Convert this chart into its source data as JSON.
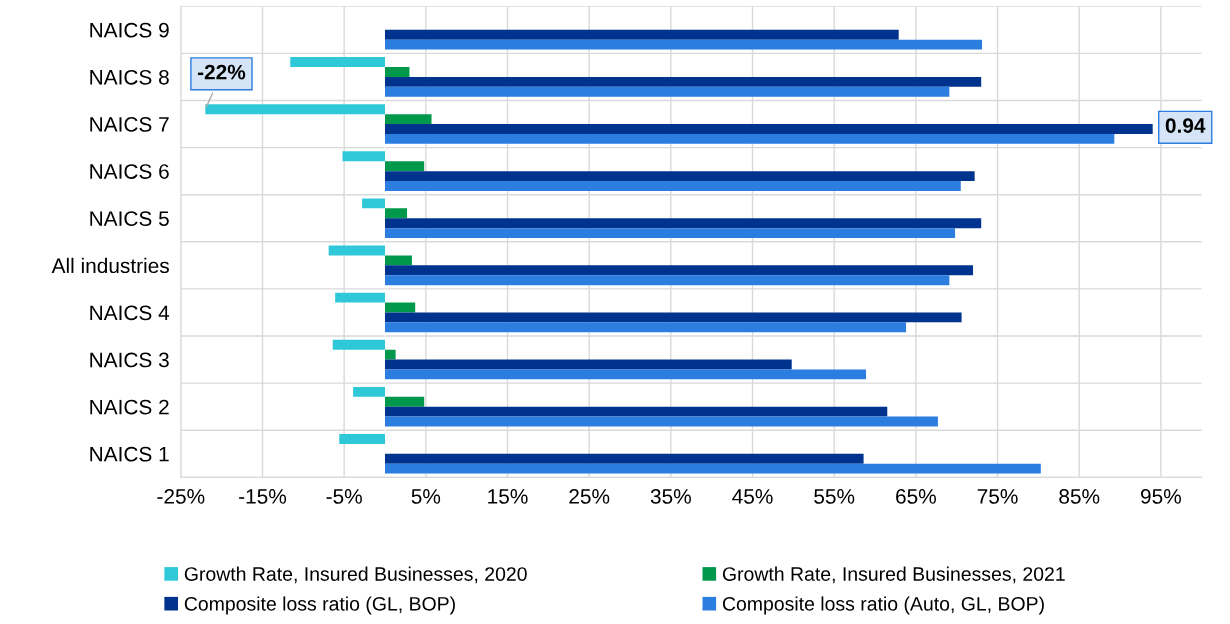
{
  "chart_data": {
    "type": "bar",
    "orientation": "horizontal",
    "categories": [
      "NAICS 9",
      "NAICS 8",
      "NAICS 7",
      "NAICS 6",
      "NAICS 5",
      "All industries",
      "NAICS 4",
      "NAICS 3",
      "NAICS 2",
      "NAICS 1"
    ],
    "series": [
      {
        "name": "Growth Rate, Insured Businesses, 2020",
        "color": "#2ec8d8",
        "values": [
          null,
          -11.6,
          -22,
          -5.2,
          -2.8,
          -6.9,
          -6.1,
          -6.4,
          -3.9,
          -5.6
        ],
        "value_labels": [
          null,
          null,
          "-22%",
          null,
          null,
          null,
          null,
          null,
          null,
          null
        ]
      },
      {
        "name": "Growth Rate, Insured Businesses, 2021",
        "color": "#00994c",
        "values": [
          null,
          3.0,
          5.7,
          4.8,
          2.7,
          3.3,
          3.7,
          1.3,
          4.8,
          null
        ]
      },
      {
        "name": "Composite loss ratio (GL, BOP)",
        "color": "#00338e",
        "values": [
          62.9,
          73.0,
          94,
          72.2,
          73.0,
          72.0,
          70.6,
          49.8,
          61.5,
          58.6
        ]
      },
      {
        "name": "Composite loss ratio (Auto, GL, BOP)",
        "color": "#2b7de0",
        "values": [
          73.1,
          69.1,
          89.3,
          70.5,
          69.8,
          69.1,
          63.8,
          58.9,
          67.7,
          80.3
        ]
      }
    ],
    "xlim": [
      -25,
      100
    ],
    "xticks": [
      {
        "value": -25,
        "label": "-25%"
      },
      {
        "value": -15,
        "label": "-15%"
      },
      {
        "value": -5,
        "label": "-5%"
      },
      {
        "value": 5,
        "label": "5%"
      },
      {
        "value": 15,
        "label": "15%"
      },
      {
        "value": 25,
        "label": "25%"
      },
      {
        "value": 35,
        "label": "35%"
      },
      {
        "value": 45,
        "label": "45%"
      },
      {
        "value": 55,
        "label": "55%"
      },
      {
        "value": 65,
        "label": "65%"
      },
      {
        "value": 75,
        "label": "75%"
      },
      {
        "value": 85,
        "label": "85%"
      },
      {
        "value": 95,
        "label": "95%"
      }
    ],
    "annotations": [
      {
        "text": "0.94",
        "x": 94,
        "y": "NAICS 7"
      }
    ],
    "grid": true,
    "legend": "bottom"
  }
}
